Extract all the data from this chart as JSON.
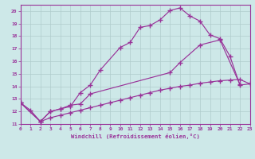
{
  "xlabel": "Windchill (Refroidissement éolien,°C)",
  "bg_color": "#cde8e8",
  "grid_color": "#b0cccc",
  "line_color": "#993399",
  "xlim": [
    0,
    23
  ],
  "ylim": [
    11,
    20.5
  ],
  "xticks": [
    0,
    1,
    2,
    3,
    4,
    5,
    6,
    7,
    8,
    9,
    10,
    11,
    12,
    13,
    14,
    15,
    16,
    17,
    18,
    19,
    20,
    21,
    22,
    23
  ],
  "yticks": [
    11,
    12,
    13,
    14,
    15,
    16,
    17,
    18,
    19,
    20
  ],
  "curve1_x": [
    0,
    1,
    2,
    3,
    4,
    5,
    6,
    7,
    8,
    10,
    11,
    12,
    13,
    14,
    15,
    16,
    17,
    18,
    19,
    20,
    21,
    22,
    23
  ],
  "curve1_y": [
    12.7,
    12.1,
    11.2,
    12.0,
    12.2,
    12.4,
    13.5,
    14.1,
    15.3,
    17.1,
    17.5,
    18.7,
    18.85,
    19.3,
    20.05,
    20.25,
    19.6,
    19.2,
    18.1,
    17.8,
    16.4,
    14.1,
    14.2
  ],
  "curve2_x": [
    0,
    2,
    3,
    4,
    5,
    6,
    7,
    15,
    16,
    18,
    20,
    22
  ],
  "curve2_y": [
    12.7,
    11.2,
    12.0,
    12.2,
    12.5,
    12.6,
    13.4,
    15.1,
    15.9,
    17.3,
    17.7,
    14.15
  ],
  "curve3_x": [
    0,
    2,
    3,
    4,
    5,
    6,
    7,
    8,
    9,
    10,
    11,
    12,
    13,
    14,
    15,
    16,
    17,
    18,
    19,
    20,
    21,
    22,
    23
  ],
  "curve3_y": [
    12.7,
    11.2,
    11.5,
    11.7,
    11.9,
    12.1,
    12.3,
    12.5,
    12.7,
    12.9,
    13.1,
    13.3,
    13.5,
    13.7,
    13.85,
    14.0,
    14.1,
    14.25,
    14.35,
    14.45,
    14.5,
    14.55,
    14.2
  ]
}
